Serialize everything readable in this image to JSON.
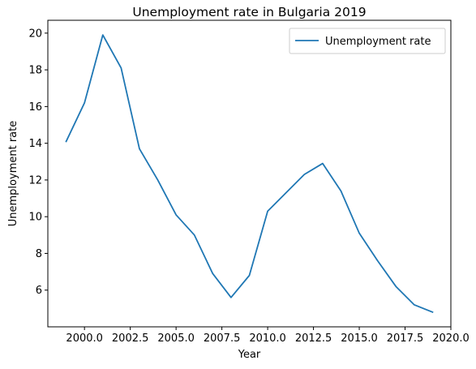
{
  "chart_data": {
    "type": "line",
    "title": "Unemployment rate in Bulgaria 2019",
    "xlabel": "Year",
    "ylabel": "Unemployment rate",
    "xlim": [
      1998,
      2020
    ],
    "ylim": [
      4.0,
      20.7
    ],
    "xticks": [
      2000.0,
      2002.5,
      2005.0,
      2007.5,
      2010.0,
      2012.5,
      2015.0,
      2017.5,
      2020.0
    ],
    "xtick_labels": [
      "2000.0",
      "2002.5",
      "2005.0",
      "2007.5",
      "2010.0",
      "2012.5",
      "2015.0",
      "2017.5",
      "2020.0"
    ],
    "yticks": [
      6,
      8,
      10,
      12,
      14,
      16,
      18,
      20
    ],
    "ytick_labels": [
      "6",
      "8",
      "10",
      "12",
      "14",
      "16",
      "18",
      "20"
    ],
    "grid": false,
    "legend_position": "top-right",
    "series": [
      {
        "name": "Unemployment rate",
        "color": "#1f77b4",
        "x": [
          1999,
          2000,
          2001,
          2002,
          2003,
          2004,
          2005,
          2006,
          2007,
          2008,
          2009,
          2010,
          2011,
          2012,
          2013,
          2014,
          2015,
          2016,
          2017,
          2018,
          2019
        ],
        "y": [
          14.1,
          16.2,
          19.9,
          18.1,
          13.7,
          12.0,
          10.1,
          9.0,
          6.9,
          5.6,
          6.8,
          10.3,
          11.3,
          12.3,
          12.9,
          11.4,
          9.1,
          7.6,
          6.2,
          5.2,
          4.8
        ]
      }
    ]
  }
}
